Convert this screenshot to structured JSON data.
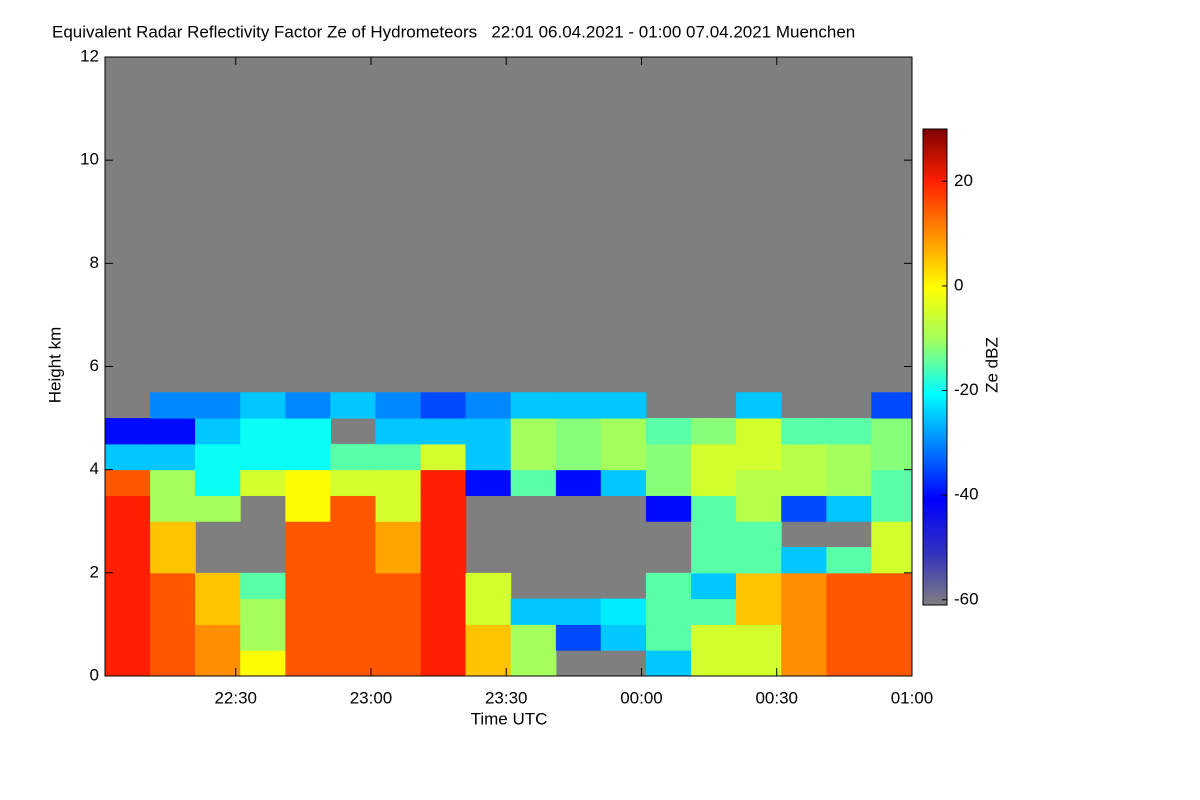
{
  "chart_data": {
    "type": "heatmap",
    "title": "Equivalent Radar Reflectivity Factor Ze of Hydrometeors   22:01 06.04.2021 - 01:00 07.04.2021 Muenchen",
    "x_label": "Time UTC",
    "y_label": "Height km",
    "colorbar_label": "Ze dBZ",
    "x": [
      22.1,
      22.267,
      22.433,
      22.6,
      22.767,
      22.933,
      23.1,
      23.267,
      23.433,
      23.6,
      23.767,
      23.933,
      24.1,
      24.267,
      24.433,
      24.6,
      24.767,
      24.933
    ],
    "y": [
      0.25,
      0.75,
      1.25,
      1.75,
      2.25,
      2.75,
      3.25,
      3.75,
      4.25,
      4.75,
      5.25,
      5.75
    ],
    "z": [
      [
        20,
        15,
        10,
        0,
        15,
        15,
        15,
        20,
        5,
        -10,
        null,
        null,
        -25,
        -5,
        -5,
        10,
        15,
        15
      ],
      [
        20,
        15,
        10,
        -10,
        15,
        15,
        15,
        20,
        5,
        -10,
        -35,
        -25,
        -15,
        -5,
        -5,
        10,
        15,
        15
      ],
      [
        20,
        15,
        5,
        -10,
        15,
        15,
        15,
        20,
        -5,
        -25,
        -25,
        -22,
        -15,
        -15,
        5,
        10,
        15,
        15
      ],
      [
        20,
        15,
        5,
        -15,
        15,
        15,
        15,
        20,
        -5,
        null,
        null,
        null,
        -15,
        -25,
        5,
        10,
        15,
        15
      ],
      [
        20,
        5,
        null,
        null,
        15,
        15,
        8,
        20,
        null,
        null,
        null,
        null,
        null,
        -15,
        -15,
        -25,
        -15,
        -5
      ],
      [
        20,
        5,
        null,
        null,
        15,
        15,
        8,
        20,
        null,
        null,
        null,
        null,
        null,
        -15,
        -15,
        null,
        null,
        -5
      ],
      [
        20,
        -10,
        -10,
        null,
        0,
        15,
        -5,
        20,
        null,
        null,
        null,
        null,
        -40,
        -15,
        -8,
        -35,
        -25,
        -15
      ],
      [
        15,
        -10,
        -20,
        -5,
        0,
        -5,
        -5,
        20,
        -40,
        -15,
        -40,
        -25,
        -12,
        -5,
        -8,
        -8,
        -10,
        -15
      ],
      [
        -25,
        -25,
        -20,
        -20,
        -20,
        -15,
        -15,
        -5,
        -25,
        -10,
        -12,
        -10,
        -12,
        -5,
        -5,
        -8,
        -10,
        -12
      ],
      [
        -40,
        -40,
        -25,
        -20,
        -20,
        null,
        -25,
        -25,
        -25,
        -10,
        -12,
        -10,
        -15,
        -12,
        -5,
        -15,
        -15,
        -12
      ],
      [
        null,
        -30,
        -30,
        -25,
        -30,
        -25,
        -30,
        -35,
        -30,
        -25,
        -25,
        -25,
        null,
        null,
        -25,
        null,
        null,
        -35
      ],
      [
        null,
        null,
        null,
        null,
        null,
        null,
        null,
        null,
        null,
        null,
        null,
        null,
        null,
        null,
        null,
        null,
        null,
        null
      ]
    ],
    "xlim": [
      22.0167,
      25.0
    ],
    "xticks": [
      {
        "value": 22.5,
        "label": "22:30"
      },
      {
        "value": 23,
        "label": "23:00"
      },
      {
        "value": 23.5,
        "label": "23:30"
      },
      {
        "value": 24,
        "label": "00:00"
      },
      {
        "value": 24.5,
        "label": "00:30"
      },
      {
        "value": 25,
        "label": "01:00"
      }
    ],
    "ylim": [
      0,
      12
    ],
    "yticks": [
      0,
      2,
      4,
      6,
      8,
      10,
      12
    ],
    "zlim": [
      -61,
      30
    ],
    "zticks": [
      -60,
      -40,
      -20,
      0,
      20
    ],
    "background": "#7f7f7f",
    "colorscale": [
      "#7f7f7f",
      "#3030c0",
      "#0000ff",
      "#0080ff",
      "#00ffff",
      "#a0ff60",
      "#ffff00",
      "#ff9000",
      "#ff2000",
      "#800000"
    ]
  }
}
